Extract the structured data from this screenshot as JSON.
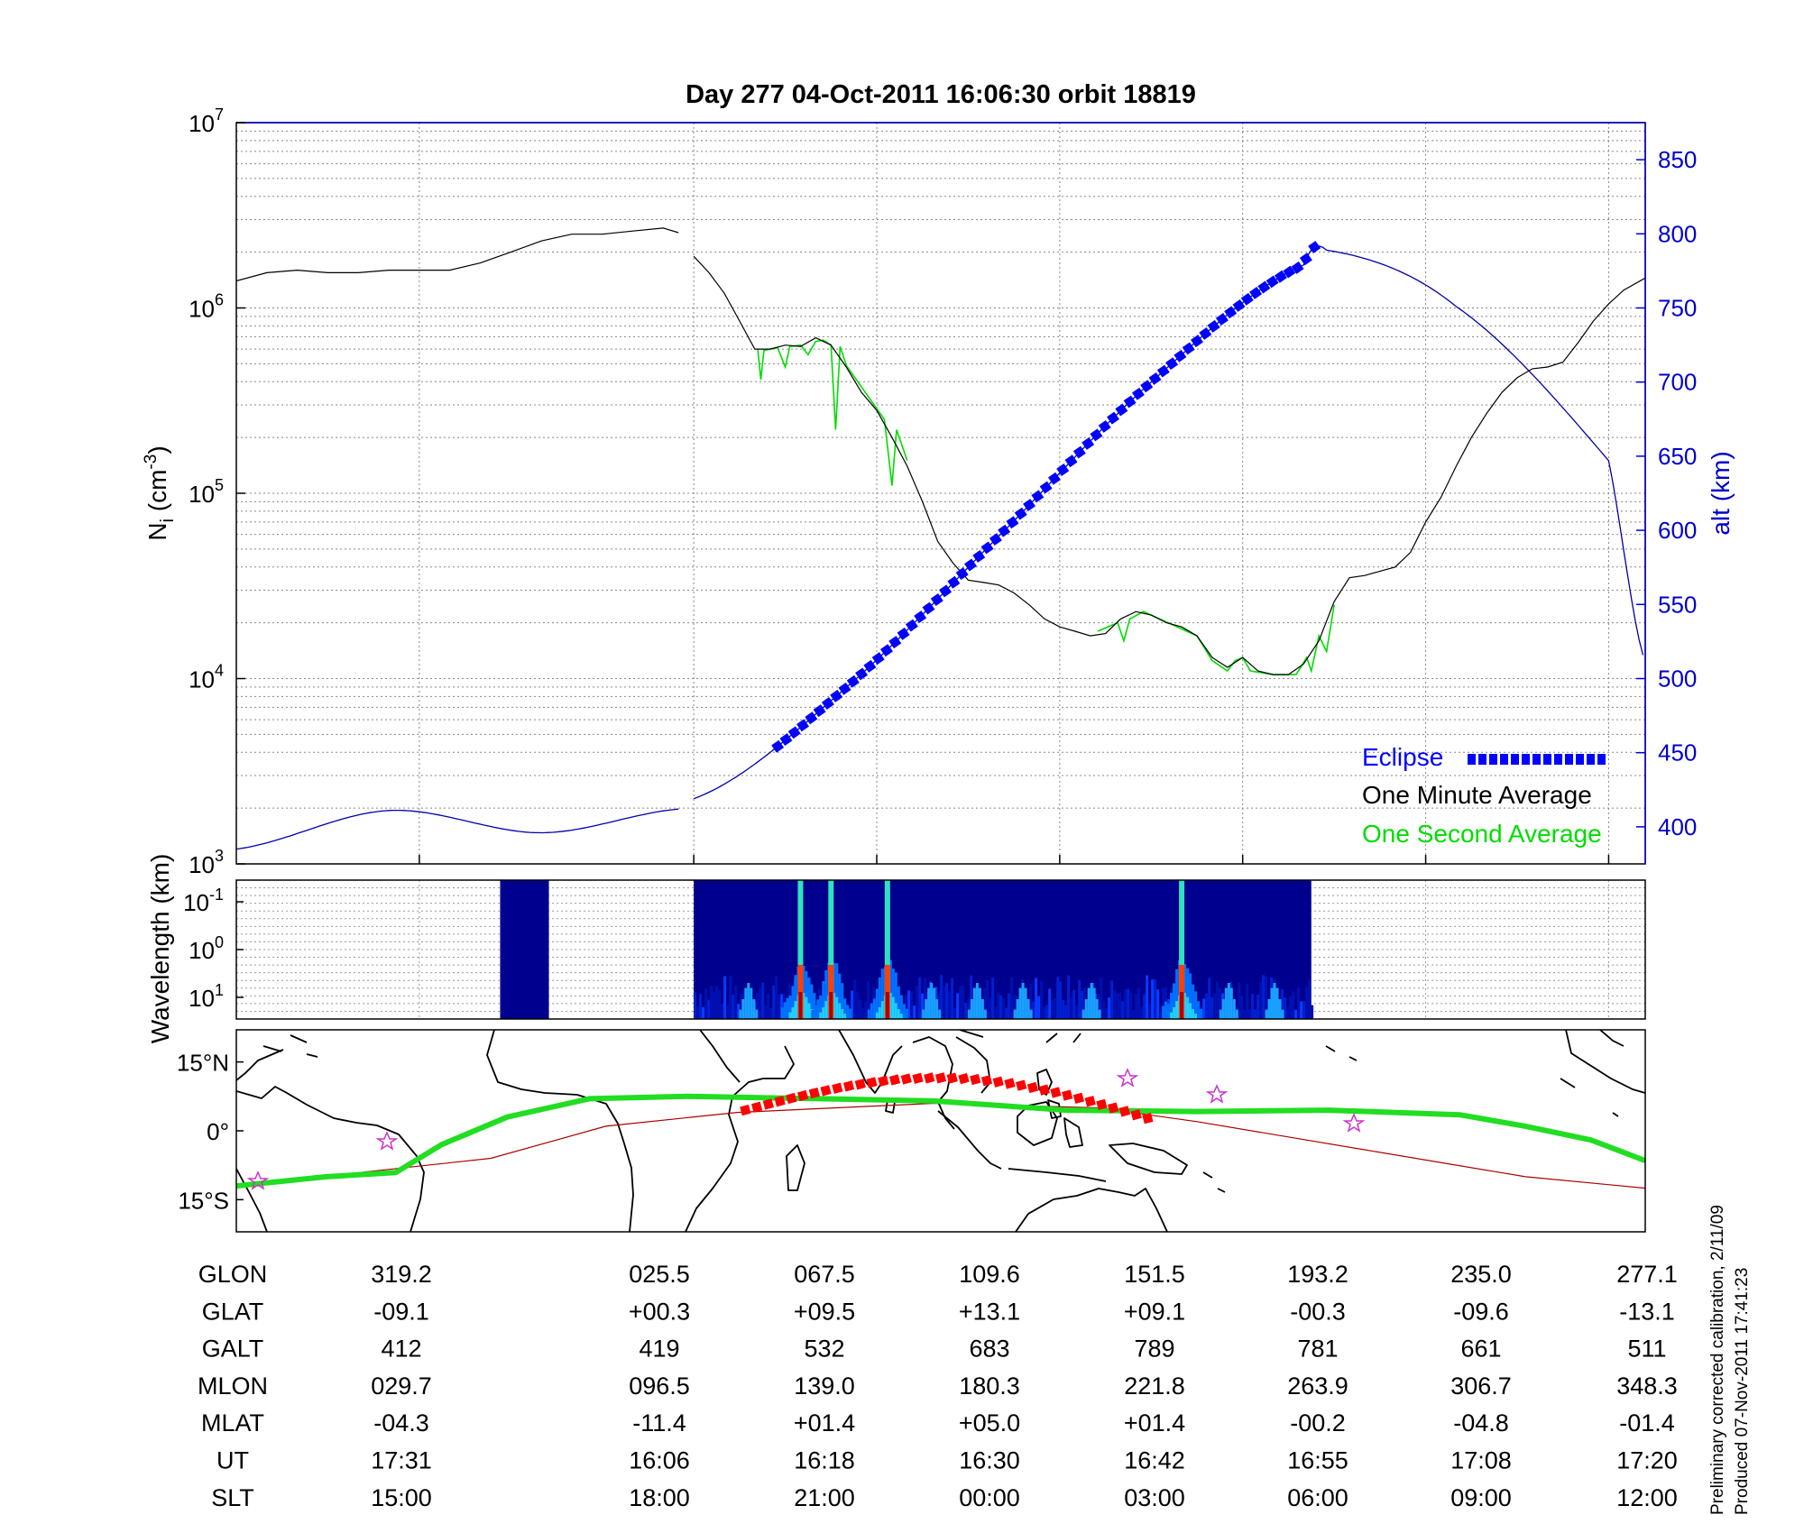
{
  "title": "Day 277  04-Oct-2011 16:06:30   orbit 18819",
  "colors": {
    "eclipse": "#0000ff",
    "one_minute": "#000000",
    "one_second": "#00dd00",
    "altitude": "#0000aa",
    "track": "#22dd22",
    "track_eclipse": "#ff0000",
    "footprint": "#aa0000"
  },
  "chart_data": [
    {
      "type": "line",
      "name": "ion-density",
      "ylabel": "N_i (cm^-3)",
      "ylabel_main": "N",
      "ylabel_sub": "i",
      "ylabel_unit_pre": " (cm",
      "ylabel_unit_sup": "-3",
      "ylabel_unit_post": ")",
      "y_scale": "log",
      "ylim": [
        1000,
        10000000
      ],
      "y_ticks": [
        {
          "base": "10",
          "exp": "3"
        },
        {
          "base": "10",
          "exp": "4"
        },
        {
          "base": "10",
          "exp": "5"
        },
        {
          "base": "10",
          "exp": "6"
        },
        {
          "base": "10",
          "exp": "7"
        }
      ],
      "y2label": "alt (km)",
      "y2lim": [
        375,
        875
      ],
      "y2_ticks": [
        "400",
        "450",
        "500",
        "550",
        "600",
        "650",
        "700",
        "750",
        "800",
        "850"
      ],
      "x_unit": "UT (min since 16:06)",
      "xlim": [
        -30,
        62.4
      ],
      "grid": true,
      "legend": {
        "position": "bottom-right",
        "entries": [
          {
            "label": "Eclipse",
            "color": "#0000ff"
          },
          {
            "label": "One Minute Average",
            "color": "#000000"
          },
          {
            "label": "One Second Average",
            "color": "#00dd00"
          }
        ]
      },
      "series": [
        {
          "name": "One Minute Average",
          "segments": [
            [
              [
                -30,
                1400000.0
              ],
              [
                -28,
                1550000.0
              ],
              [
                -26,
                1600000.0
              ],
              [
                -24,
                1550000.0
              ],
              [
                -22,
                1550000.0
              ],
              [
                -20,
                1600000.0
              ],
              [
                -18,
                1600000.0
              ],
              [
                -16,
                1600000.0
              ],
              [
                -14,
                1750000.0
              ],
              [
                -12,
                2000000.0
              ],
              [
                -10,
                2300000.0
              ],
              [
                -8,
                2500000.0
              ],
              [
                -6,
                2500000.0
              ],
              [
                -4,
                2600000.0
              ],
              [
                -2,
                2700000.0
              ],
              [
                -1,
                2550000.0
              ]
            ],
            [
              [
                0,
                1900000.0
              ],
              [
                1,
                1550000.0
              ],
              [
                2,
                1200000.0
              ],
              [
                3,
                850000.0
              ],
              [
                4,
                600000.0
              ],
              [
                5,
                600000.0
              ],
              [
                6,
                630000.0
              ],
              [
                7,
                620000.0
              ],
              [
                8,
                690000.0
              ],
              [
                9,
                630000.0
              ],
              [
                10,
                480000.0
              ],
              [
                11,
                350000.0
              ],
              [
                12,
                280000.0
              ],
              [
                13,
                200000.0
              ],
              [
                14,
                140000.0
              ],
              [
                15,
                90000.0
              ],
              [
                16,
                55000.0
              ],
              [
                17,
                42000.0
              ],
              [
                18,
                34000.0
              ],
              [
                19,
                33000.0
              ],
              [
                20,
                32000.0
              ],
              [
                21,
                29000.0
              ],
              [
                22,
                25000.0
              ],
              [
                23,
                21000.0
              ],
              [
                24,
                19000.0
              ],
              [
                25,
                18000.0
              ],
              [
                26,
                17000.0
              ],
              [
                27,
                17500.0
              ],
              [
                28,
                21000.0
              ],
              [
                29,
                23000.0
              ],
              [
                30,
                22000.0
              ],
              [
                31,
                20000.0
              ],
              [
                32,
                19000.0
              ],
              [
                33,
                17000.0
              ],
              [
                34,
                13000.0
              ],
              [
                35,
                11500.0
              ],
              [
                36,
                13000.0
              ],
              [
                37,
                11000.0
              ],
              [
                38,
                10500.0
              ],
              [
                39,
                10500.0
              ],
              [
                40,
                12000.0
              ],
              [
                41,
                16000.0
              ],
              [
                42,
                26000.0
              ],
              [
                43,
                35000.0
              ],
              [
                44,
                36000.0
              ],
              [
                45,
                38000.0
              ],
              [
                46,
                40000.0
              ],
              [
                47,
                48000.0
              ],
              [
                48,
                70000.0
              ],
              [
                49,
                95000.0
              ],
              [
                50,
                140000.0
              ],
              [
                51,
                200000.0
              ],
              [
                52,
                270000.0
              ],
              [
                53,
                350000.0
              ],
              [
                54,
                420000.0
              ],
              [
                55,
                470000.0
              ],
              [
                56,
                480000.0
              ],
              [
                57,
                510000.0
              ],
              [
                58,
                650000.0
              ],
              [
                59,
                850000.0
              ],
              [
                60,
                1050000.0
              ],
              [
                61,
                1250000.0
              ],
              [
                62.4,
                1450000.0
              ]
            ]
          ]
        },
        {
          "name": "One Second Average",
          "segments": [
            [
              [
                4.2,
                600000.0
              ],
              [
                4.4,
                410000.0
              ],
              [
                4.6,
                590000.0
              ],
              [
                5.5,
                610000.0
              ],
              [
                6.0,
                480000.0
              ],
              [
                6.3,
                620000.0
              ],
              [
                7,
                630000.0
              ],
              [
                7.5,
                560000.0
              ],
              [
                8.0,
                660000.0
              ],
              [
                8.5,
                670000.0
              ],
              [
                9.0,
                630000.0
              ],
              [
                9.3,
                220000.0
              ],
              [
                9.6,
                620000.0
              ],
              [
                10,
                490000.0
              ],
              [
                12.5,
                250000.0
              ],
              [
                13.0,
                110000.0
              ],
              [
                13.3,
                220000.0
              ],
              [
                14,
                150000.0
              ]
            ],
            [
              [
                26.5,
                18000.0
              ],
              [
                27.8,
                20000.0
              ],
              [
                28.2,
                16000.0
              ],
              [
                28.6,
                21000.0
              ],
              [
                29.5,
                23000.0
              ],
              [
                33,
                17000.0
              ],
              [
                34,
                12500.0
              ],
              [
                35,
                11000.0
              ],
              [
                35.5,
                12500.0
              ],
              [
                36,
                13000.0
              ],
              [
                36.5,
                11000.0
              ],
              [
                38,
                10500.0
              ],
              [
                39.5,
                10500.0
              ],
              [
                40.2,
                13000.0
              ],
              [
                40.5,
                11000.0
              ],
              [
                41,
                17000.0
              ],
              [
                41.5,
                14000.0
              ],
              [
                42,
                25000.0
              ]
            ]
          ]
        },
        {
          "name": "alt",
          "axis": "y2",
          "segments": [
            [
              [
                -30,
                385
              ],
              [
                -20,
                411
              ],
              [
                -10,
                396
              ],
              [
                -1,
                412
              ]
            ],
            [
              [
                0,
                419
              ],
              [
                10,
                494
              ],
              [
                20,
                596
              ],
              [
                30,
                700
              ],
              [
                40,
                779
              ],
              [
                41.5,
                789
              ],
              [
                50,
                751
              ],
              [
                60,
                647
              ],
              [
                62.4,
                511
              ]
            ]
          ]
        },
        {
          "name": "Eclipse",
          "axis": "y2",
          "marker": "square",
          "x_range": [
            5.5,
            40.7
          ]
        }
      ]
    },
    {
      "type": "heatmap",
      "name": "wavelength-spectrogram",
      "ylabel": "Wavelength (km)",
      "y_ticks": [
        {
          "base": "10",
          "exp": "-1"
        },
        {
          "base": "10",
          "exp": "0"
        },
        {
          "base": "10",
          "exp": "1"
        }
      ],
      "data_blocks_min": [
        [
          -12.7,
          -9.5
        ],
        [
          0,
          40.5
        ]
      ],
      "bright_streaks_min": [
        7.0,
        9.0,
        12.7,
        32.0
      ],
      "colormap": "jet"
    },
    {
      "type": "map",
      "name": "ground-track",
      "y_ticks": [
        "15°N",
        "0°",
        "15°S"
      ],
      "latlim": [
        -22,
        22
      ],
      "lonlim": [
        309.5,
        395.3
      ],
      "track": [
        [
          309.5,
          -12
        ],
        [
          315,
          -10
        ],
        [
          319.2,
          -9.1
        ],
        [
          322,
          -3
        ],
        [
          326,
          3
        ],
        [
          331,
          7
        ],
        [
          337,
          7.5
        ],
        [
          345,
          7
        ],
        [
          352,
          6.5
        ],
        [
          360,
          4.5
        ],
        [
          368,
          4.2
        ],
        [
          376,
          4.5
        ],
        [
          384,
          3.5
        ],
        [
          388,
          1
        ],
        [
          392,
          -2
        ],
        [
          395.3,
          -6.5
        ]
      ],
      "track_eclipse_x_range": [
        340.5,
        365.2
      ],
      "footprint": [
        [
          309.5,
          -12
        ],
        [
          325,
          -6
        ],
        [
          332,
          1
        ],
        [
          340,
          4
        ],
        [
          352,
          6
        ],
        [
          362,
          5
        ],
        [
          368,
          2
        ],
        [
          378,
          -4
        ],
        [
          388,
          -10
        ],
        [
          395.3,
          -12.5
        ]
      ]
    }
  ],
  "table": {
    "rows": [
      {
        "label": "GLON",
        "values": [
          "319.2",
          "025.5",
          "067.5",
          "109.6",
          "151.5",
          "193.2",
          "235.0",
          "277.1"
        ]
      },
      {
        "label": "GLAT",
        "values": [
          "-09.1",
          "+00.3",
          "+09.5",
          "+13.1",
          "+09.1",
          "-00.3",
          "-09.6",
          "-13.1"
        ]
      },
      {
        "label": "GALT",
        "values": [
          "412",
          "419",
          "532",
          "683",
          "789",
          "781",
          "661",
          "511"
        ]
      },
      {
        "label": "MLON",
        "values": [
          "029.7",
          "096.5",
          "139.0",
          "180.3",
          "221.8",
          "263.9",
          "306.7",
          "348.3"
        ]
      },
      {
        "label": "MLAT",
        "values": [
          "-04.3",
          "-11.4",
          "+01.4",
          "+05.0",
          "+01.4",
          "-00.2",
          "-04.8",
          "-01.4"
        ]
      },
      {
        "label": "UT",
        "values": [
          "17:31",
          "16:06",
          "16:18",
          "16:30",
          "16:42",
          "16:55",
          "17:08",
          "17:20"
        ]
      },
      {
        "label": "SLT",
        "values": [
          "15:00",
          "18:00",
          "21:00",
          "00:00",
          "03:00",
          "06:00",
          "09:00",
          "12:00"
        ]
      }
    ]
  },
  "notes": [
    "Preliminary corrected calibration, 2/11/09",
    "Produced 07-Nov-2011 17:41:23"
  ]
}
